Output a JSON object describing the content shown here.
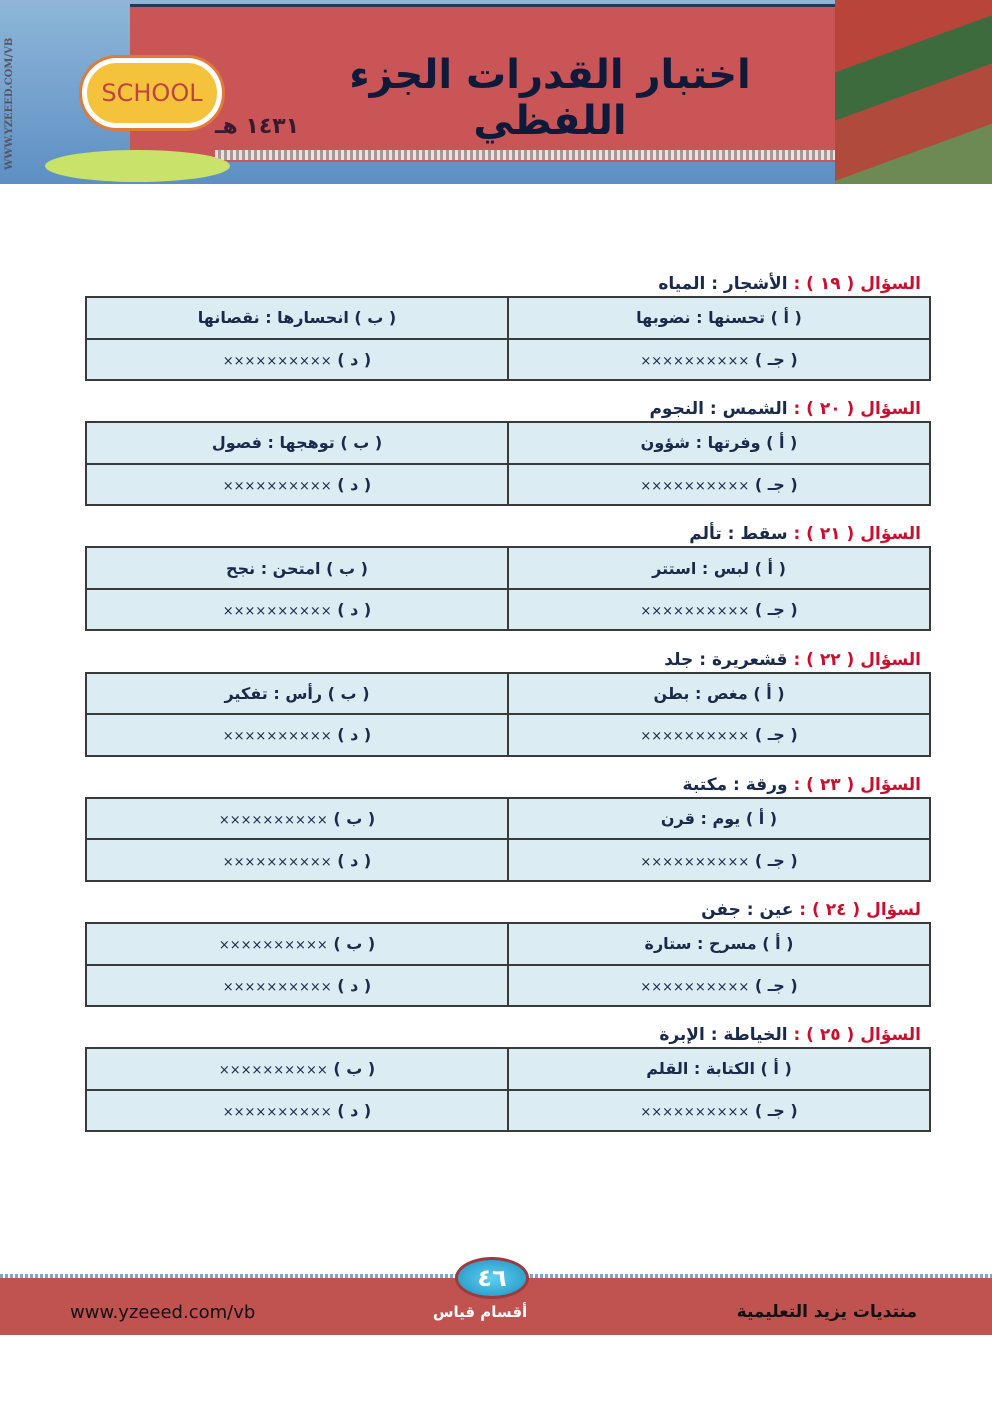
{
  "header": {
    "title": "اختبار القدرات الجزء اللفظي",
    "year": "١٤٣١ هـ",
    "side_url": "WWW.YZEEED.COM/VB",
    "sign_text": "SCHOOL"
  },
  "questions": [
    {
      "prefix": "السؤال ( ١٩ ) :",
      "stem": "الأشجار : المياه",
      "a": {
        "label": "( أ )",
        "text": "تحسنها : نضوبها"
      },
      "b": {
        "label": "( ب )",
        "text": "انحسارها : نقصانها"
      },
      "c": {
        "label": "( جـ )",
        "text": "××××××××××"
      },
      "d": {
        "label": "( د )",
        "text": "××××××××××"
      }
    },
    {
      "prefix": "السؤال ( ٢٠ ) :",
      "stem": "الشمس : النجوم",
      "a": {
        "label": "( أ )",
        "text": "وفرتها : شؤون"
      },
      "b": {
        "label": "( ب )",
        "text": "توهجها : فصول"
      },
      "c": {
        "label": "( جـ )",
        "text": "××××××××××"
      },
      "d": {
        "label": "( د )",
        "text": "××××××××××"
      }
    },
    {
      "prefix": "السؤال ( ٢١ ) :",
      "stem": "سقط : تألم",
      "a": {
        "label": "( أ )",
        "text": "لبس : استتر"
      },
      "b": {
        "label": "( ب )",
        "text": "امتحن : نجح"
      },
      "c": {
        "label": "( جـ )",
        "text": "××××××××××"
      },
      "d": {
        "label": "( د )",
        "text": "××××××××××"
      }
    },
    {
      "prefix": "السؤال ( ٢٢ ) :",
      "stem": "قشعريرة : جلد",
      "a": {
        "label": "( أ )",
        "text": "مغص : بطن"
      },
      "b": {
        "label": "( ب )",
        "text": "رأس : تفكير"
      },
      "c": {
        "label": "( جـ )",
        "text": "××××××××××"
      },
      "d": {
        "label": "( د )",
        "text": "××××××××××"
      }
    },
    {
      "prefix": "السؤال ( ٢٣ ) :",
      "stem": "ورقة : مكتبة",
      "a": {
        "label": "( أ )",
        "text": "يوم : قرن"
      },
      "b": {
        "label": "( ب )",
        "text": "××××××××××"
      },
      "c": {
        "label": "( جـ )",
        "text": "××××××××××"
      },
      "d": {
        "label": "( د )",
        "text": "××××××××××"
      }
    },
    {
      "prefix": "لسؤال ( ٢٤ ) :",
      "stem": "عين : جفن",
      "a": {
        "label": "( أ )",
        "text": "مسرح : ستارة"
      },
      "b": {
        "label": "( ب )",
        "text": "××××××××××"
      },
      "c": {
        "label": "( جـ )",
        "text": "××××××××××"
      },
      "d": {
        "label": "( د )",
        "text": "××××××××××"
      }
    },
    {
      "prefix": "السؤال ( ٢٥ ) :",
      "stem": "الخياطة : الإبرة",
      "a": {
        "label": "( أ )",
        "text": "الكتابة : القلم"
      },
      "b": {
        "label": "( ب )",
        "text": "××××××××××"
      },
      "c": {
        "label": "( جـ )",
        "text": "××××××××××"
      },
      "d": {
        "label": "( د )",
        "text": "××××××××××"
      }
    }
  ],
  "footer": {
    "page_number": "٤٦",
    "section": "أقسام قياس",
    "url": "www.yzeeed.com/vb",
    "forum": "منتديات يزيد التعليمية"
  }
}
